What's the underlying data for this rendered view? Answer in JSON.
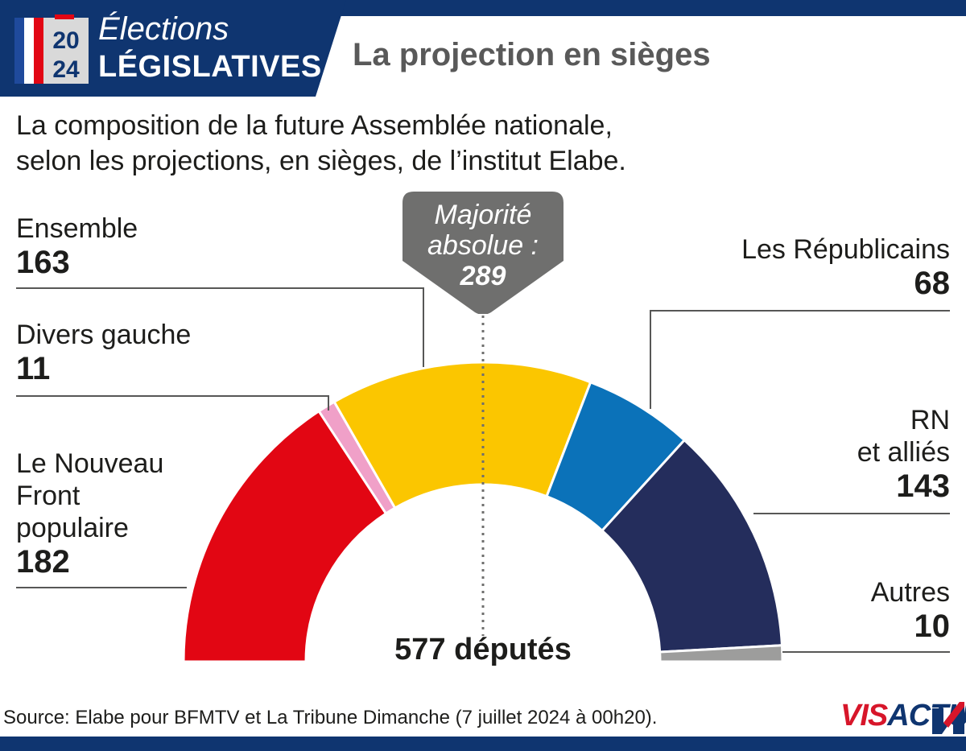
{
  "header": {
    "ballot_year_top": "20",
    "ballot_year_bottom": "24",
    "line1": "Élections",
    "line2": "LÉGISLATIVES",
    "headline": "La projection en sièges"
  },
  "subtitle": {
    "line1": "La composition de la future Assemblée nationale,",
    "line2": "selon les projections, en sièges, de l’institut Elabe."
  },
  "majority": {
    "line1": "Majorité",
    "line2": "absolue :",
    "value": "289"
  },
  "total_label": "577 députés",
  "source": "Source: Elabe pour BFMTV et La Tribune Dimanche (7 juillet 2024 à 00h20).",
  "logo": {
    "part1": "VIS",
    "part2": "ACTU"
  },
  "chart_data": {
    "type": "pie",
    "subtype": "semicircle-parliament",
    "total": 577,
    "majority": 289,
    "series": [
      {
        "name": "Le Nouveau Front populaire",
        "name_lines": [
          "Le Nouveau",
          "Front",
          "populaire"
        ],
        "value": 182,
        "color": "#e20613"
      },
      {
        "name": "Divers gauche",
        "name_lines": [
          "Divers gauche"
        ],
        "value": 11,
        "color": "#f0a0c8"
      },
      {
        "name": "Ensemble",
        "name_lines": [
          "Ensemble"
        ],
        "value": 163,
        "color": "#fbc600"
      },
      {
        "name": "Les Républicains",
        "name_lines": [
          "Les Républicains"
        ],
        "value": 68,
        "color": "#0b72b9"
      },
      {
        "name": "RN et alliés",
        "name_lines": [
          "RN",
          "et alliés"
        ],
        "value": 143,
        "color": "#242d5c"
      },
      {
        "name": "Autres",
        "name_lines": [
          "Autres"
        ],
        "value": 10,
        "color": "#9d9d9c"
      }
    ]
  },
  "colors": {
    "brand_navy": "#0f3570",
    "brand_red": "#d7162a",
    "callout_grey": "#6f6f6e"
  }
}
